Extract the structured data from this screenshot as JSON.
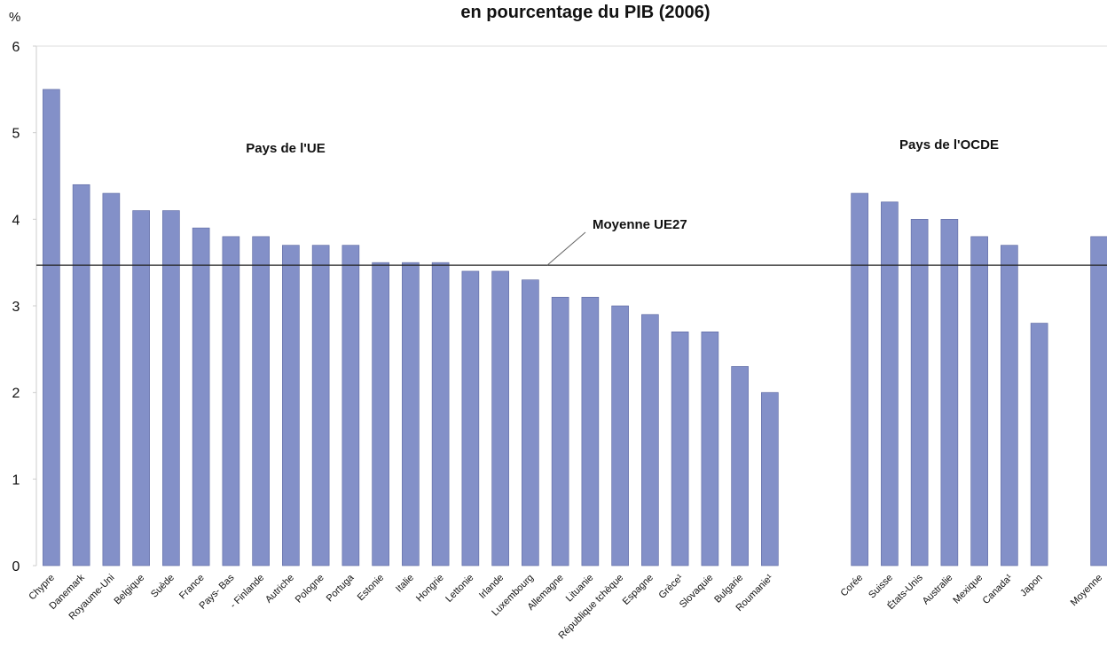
{
  "chart_data": {
    "type": "bar",
    "title": "en pourcentage du PIB (2006)",
    "y_label": "%",
    "categories": [
      "Chypre",
      "Danemark",
      "Royaume-Uni",
      "Belgique",
      "Suède",
      "France",
      "Pays- Bas",
      "- Finlande",
      "Autriche",
      "Pologne",
      "Portuga",
      "Estonie",
      "Italie",
      "Hongrie",
      "Lettonie",
      "Irlande",
      "Luxembourg",
      "Allemagne",
      "Lituanie",
      "République  tchèque",
      "Espagne",
      "Grèce¹",
      "Slovaquie",
      "Bulgarie",
      "Roumanie¹",
      null,
      null,
      "Corée",
      "Suisse",
      "États-Unis",
      "Australie",
      "Mexique",
      "Canada¹",
      "Japon",
      null,
      "Moyenne"
    ],
    "values": [
      5.5,
      4.4,
      4.3,
      4.1,
      4.1,
      3.9,
      3.8,
      3.8,
      3.7,
      3.7,
      3.7,
      3.5,
      3.5,
      3.5,
      3.4,
      3.4,
      3.3,
      3.1,
      3.1,
      3.0,
      2.9,
      2.7,
      2.7,
      2.3,
      2.0,
      null,
      null,
      4.3,
      4.2,
      4.0,
      4.0,
      3.8,
      3.7,
      2.8,
      null,
      3.8
    ],
    "color": "#8390c8",
    "ylim": [
      0,
      6
    ],
    "yticks": [
      0,
      1,
      2,
      3,
      4,
      5,
      6
    ],
    "reference_line": {
      "label": "Moyenne UE27",
      "value": 3.47
    },
    "group_labels": [
      "Pays de l'UE",
      "Pays de l'OCDE"
    ]
  }
}
